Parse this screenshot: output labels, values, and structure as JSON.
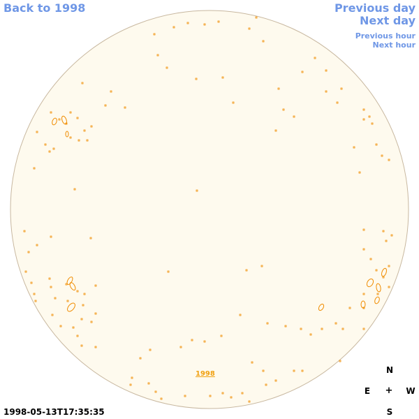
{
  "nav": {
    "back_label": "Back to 1998",
    "prev_day_label": "Previous day",
    "next_day_label": "Next day",
    "prev_hour_label": "Previous hour",
    "next_hour_label": "Next hour"
  },
  "compass": {
    "n": "N",
    "e": "E",
    "center": "+",
    "w": "W",
    "s": "S"
  },
  "timestamp": "1998-05-13T17:35:35",
  "year_label": "1998",
  "colors": {
    "disk_fill": "#fefaee",
    "disk_stroke": "#c8b8a0",
    "contour": "#f08c00",
    "link": "#6f97e6"
  }
}
